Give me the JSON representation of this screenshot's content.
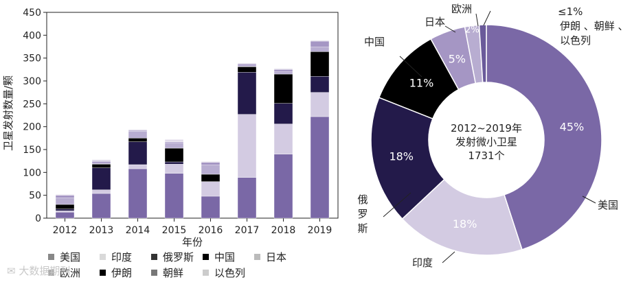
{
  "chart_data": [
    {
      "type": "bar",
      "stacked": true,
      "ylabel": "卫星发射数量/颗",
      "xlabel": "年份",
      "ylim": [
        0,
        450
      ],
      "yticks": [
        0,
        50,
        100,
        150,
        200,
        250,
        300,
        350,
        400,
        450
      ],
      "categories": [
        "2012",
        "2013",
        "2014",
        "2015",
        "2016",
        "2017",
        "2018",
        "2019"
      ],
      "series": [
        {
          "name": "美国",
          "color": "#7a68a6",
          "values": [
            13,
            54,
            108,
            98,
            48,
            89,
            140,
            222
          ]
        },
        {
          "name": "印度",
          "color": "#d3cbe2",
          "values": [
            3,
            8,
            9,
            20,
            32,
            138,
            66,
            53
          ]
        },
        {
          "name": "俄罗斯",
          "color": "#231a4a",
          "values": [
            4,
            48,
            50,
            5,
            0,
            92,
            45,
            35
          ]
        },
        {
          "name": "中国",
          "color": "#000000",
          "values": [
            10,
            8,
            8,
            30,
            16,
            12,
            64,
            54
          ]
        },
        {
          "name": "日本",
          "color": "#b8add1",
          "values": [
            14,
            2,
            15,
            12,
            20,
            2,
            5,
            10
          ]
        },
        {
          "name": "欧洲",
          "color": "#a596c4",
          "values": [
            6,
            4,
            2,
            2,
            6,
            4,
            5,
            13
          ]
        },
        {
          "name": "伊朗",
          "color": "#000000",
          "values": [
            0,
            0,
            0,
            0,
            0,
            0,
            0,
            0
          ]
        },
        {
          "name": "朝鲜",
          "color": "#5a4d8a",
          "values": [
            0,
            0,
            0,
            0,
            0,
            0,
            0,
            0
          ]
        },
        {
          "name": "以色列",
          "color": "#e0dae9",
          "values": [
            2,
            4,
            2,
            5,
            2,
            2,
            2,
            2
          ]
        }
      ],
      "legend": [
        {
          "name": "美国",
          "swatch": "#888888"
        },
        {
          "name": "印度",
          "swatch": "#d9d9d9"
        },
        {
          "name": "俄罗斯",
          "swatch": "#333333"
        },
        {
          "name": "中国",
          "swatch": "#000000"
        },
        {
          "name": "日本",
          "swatch": "#bbbbbb"
        },
        {
          "name": "欧洲",
          "swatch": "#aaaaaa"
        },
        {
          "name": "伊朗",
          "swatch": "#000000"
        },
        {
          "name": "朝鲜",
          "swatch": "#777777"
        },
        {
          "name": "以色列",
          "swatch": "#cccccc"
        }
      ]
    },
    {
      "type": "pie",
      "donut": true,
      "center_text": [
        "2012~2019年",
        "发射微小卫星",
        "1731个"
      ],
      "slices": [
        {
          "name": "美国",
          "value": 45,
          "label": "45%",
          "color": "#7a68a6",
          "text_color": "#ffffff"
        },
        {
          "name": "印度",
          "value": 18,
          "label": "18%",
          "color": "#d3cbe2",
          "text_color": "#ffffff"
        },
        {
          "name": "俄罗斯",
          "value": 18,
          "label": "18%",
          "color": "#231a4a",
          "text_color": "#ffffff"
        },
        {
          "name": "中国",
          "value": 11,
          "label": "11%",
          "color": "#000000",
          "text_color": "#ffffff"
        },
        {
          "name": "日本",
          "value": 5,
          "label": "5%",
          "color": "#a596c4",
          "text_color": "#ffffff"
        },
        {
          "name": "欧洲",
          "value": 2,
          "label": "2%",
          "color": "#b8add1",
          "text_color": "#ffffff"
        },
        {
          "name": "伊朗、朝鲜、以色列",
          "value": 1,
          "label": "≤1%",
          "color": "#6a5a9a",
          "text_color": "#222222"
        }
      ],
      "outer_labels": {
        "us": "美国",
        "india": "印度",
        "russia": "俄罗斯",
        "china": "中国",
        "japan": "日本",
        "europe": "欧洲",
        "others_pct": "≤1%",
        "others_line1": "伊朗 、朝鲜 、",
        "others_line2": "以色列"
      }
    }
  ],
  "watermark": "大数据期刊"
}
